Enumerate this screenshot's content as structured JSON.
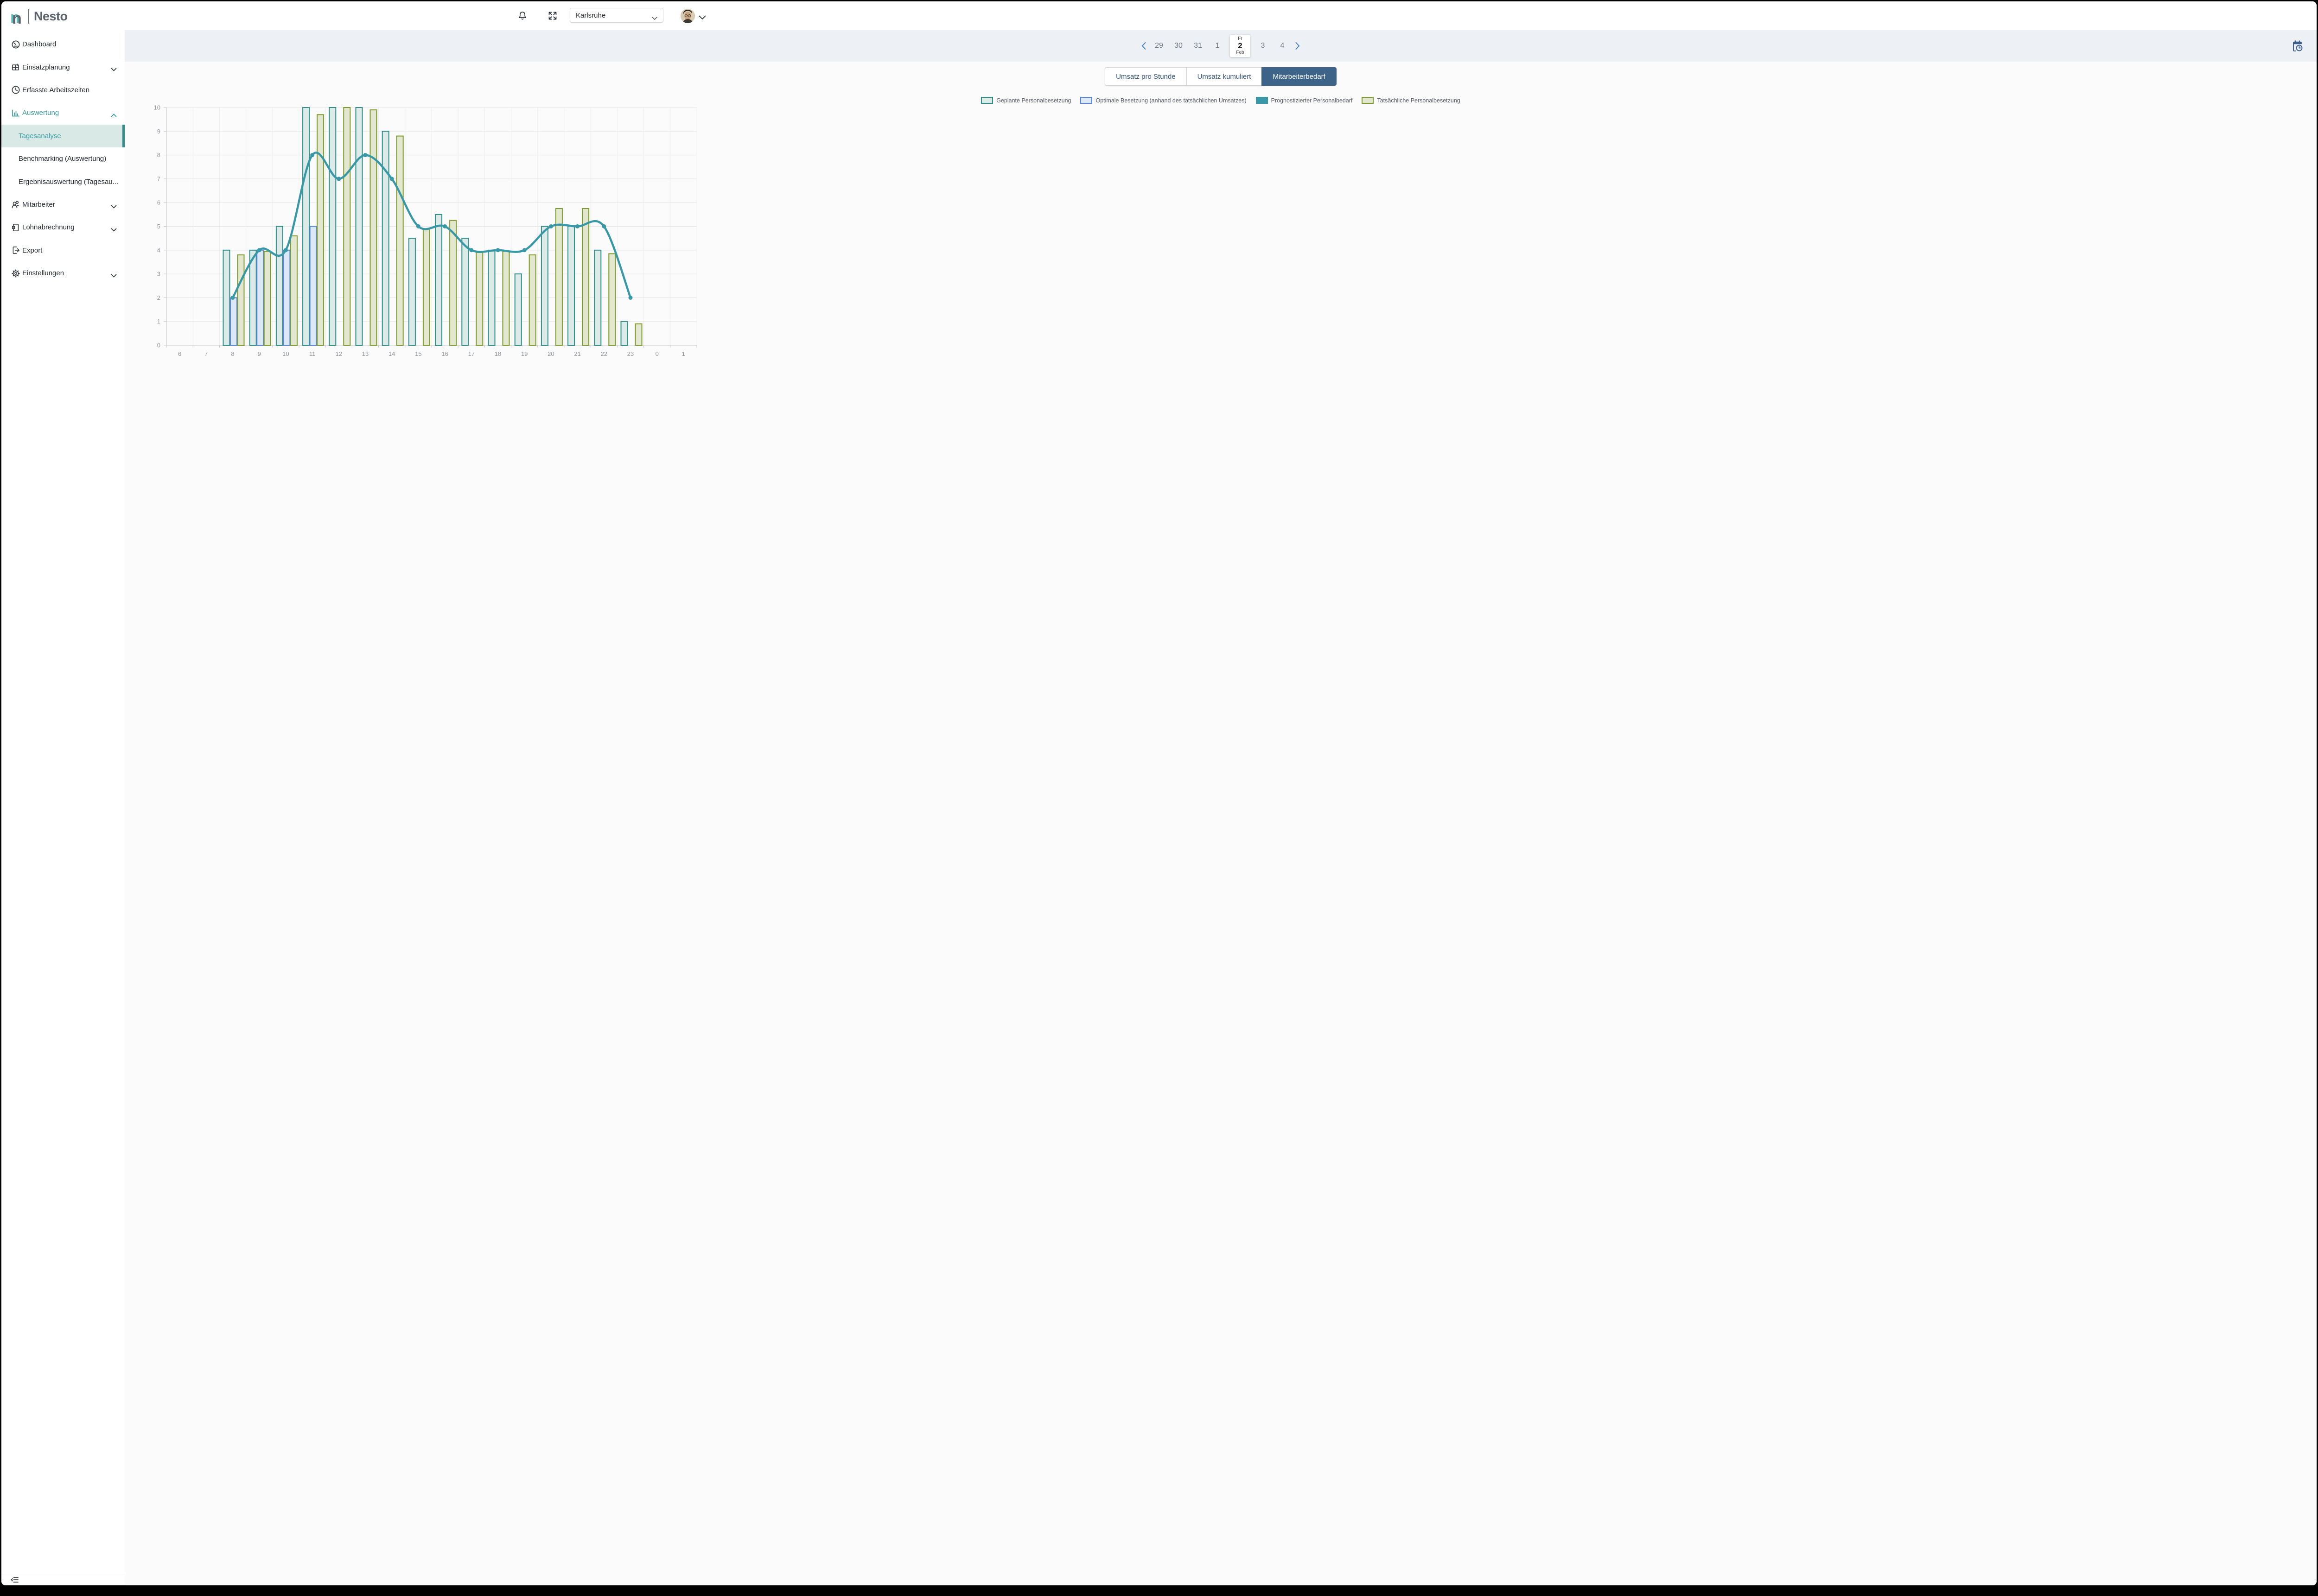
{
  "brand": {
    "logo_text": "Nesto",
    "logo_letter": "n",
    "accent_color": "#3a9ba1"
  },
  "sidebar": {
    "items": [
      {
        "label": "Dashboard",
        "icon": "speedometer-icon"
      },
      {
        "label": "Einsatzplanung",
        "icon": "planning-grid-icon",
        "chevron": "down"
      },
      {
        "label": "Erfasste Arbeitszeiten",
        "icon": "clock-icon"
      },
      {
        "label": "Auswertung",
        "icon": "bar-chart-icon",
        "chevron": "up",
        "expanded": true
      },
      {
        "label": "Tagesanalyse",
        "sub": true,
        "selected": true
      },
      {
        "label": "Benchmarking (Auswertung)",
        "sub": true
      },
      {
        "label": "Ergebnisauswertung (Tagesau...",
        "sub": true
      },
      {
        "label": "Mitarbeiter",
        "icon": "people-icon",
        "chevron": "down"
      },
      {
        "label": "Lohnabrechnung",
        "icon": "payroll-doc-icon",
        "chevron": "down"
      },
      {
        "label": "Export",
        "icon": "export-icon"
      },
      {
        "label": "Einstellungen",
        "icon": "gear-icon",
        "chevron": "down"
      }
    ],
    "collapse_icon": "collapse-sidebar-icon"
  },
  "header": {
    "icons": [
      "bell-icon",
      "fullscreen-icon"
    ],
    "location_select": {
      "value": "Karlsruhe"
    },
    "avatar": "user-avatar"
  },
  "datebar": {
    "prev_icon": "chevron-left-icon",
    "next_icon": "chevron-right-icon",
    "days_before": [
      "29",
      "30",
      "31",
      "1"
    ],
    "selected": {
      "weekday": "Fr",
      "day": "2",
      "month": "Feb"
    },
    "days_after": [
      "3",
      "4"
    ],
    "calendar_icon": "calendar-clock-icon"
  },
  "tabs": [
    {
      "label": "Umsatz pro Stunde",
      "active": false
    },
    {
      "label": "Umsatz kumuliert",
      "active": false
    },
    {
      "label": "Mitarbeiterbedarf",
      "active": true
    }
  ],
  "tab_active_color": "#3d6488",
  "chart_data": {
    "type": "bar",
    "categories": [
      "6",
      "7",
      "8",
      "9",
      "10",
      "11",
      "12",
      "13",
      "14",
      "15",
      "16",
      "17",
      "18",
      "19",
      "20",
      "21",
      "22",
      "23",
      "0",
      "1"
    ],
    "ylim": [
      0,
      10
    ],
    "y_ticks": [
      0,
      1,
      2,
      3,
      4,
      5,
      6,
      7,
      8,
      9,
      10
    ],
    "grid": true,
    "legend_position": "top",
    "series": [
      {
        "name": "Geplante Personalbesetzung",
        "type": "bar",
        "fill": "#dcebe7",
        "stroke": "#2f8d8a",
        "values": [
          null,
          null,
          4,
          4,
          5,
          10,
          10,
          10,
          9,
          4.5,
          5.5,
          4.5,
          4,
          3,
          5,
          5,
          4,
          1,
          null,
          null
        ]
      },
      {
        "name": "Optimale Besetzung (anhand des tatsächlichen Umsatzes)",
        "type": "bar",
        "fill": "#dce7f8",
        "stroke": "#5b85d6",
        "values": [
          null,
          null,
          2,
          4,
          4,
          5,
          null,
          null,
          null,
          null,
          null,
          null,
          null,
          null,
          null,
          null,
          null,
          null,
          null,
          null
        ]
      },
      {
        "name": "Prognostizierter Personalbedarf",
        "type": "line",
        "color": "#3898a6",
        "values": [
          null,
          null,
          2,
          4,
          4,
          8,
          7,
          8,
          7,
          5,
          5,
          4,
          4,
          4,
          5,
          5,
          5,
          2,
          null,
          null
        ]
      },
      {
        "name": "Tatsächliche Personalbesetzung",
        "type": "bar",
        "fill": "#e4e7d0",
        "stroke": "#7d9b2c",
        "values": [
          null,
          null,
          3.8,
          3.95,
          4.6,
          9.7,
          10,
          9.9,
          8.8,
          4.9,
          5.25,
          3.9,
          3.95,
          3.8,
          5.75,
          5.75,
          3.85,
          0.9,
          null,
          null
        ]
      }
    ]
  }
}
